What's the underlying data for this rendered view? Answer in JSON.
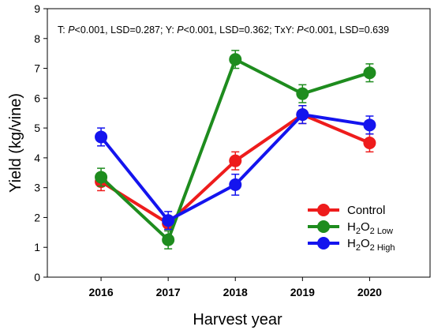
{
  "chart_data": {
    "type": "line",
    "xlabel": "Harvest year",
    "ylabel": "Yield (kg/vine)",
    "ylim": [
      0,
      9
    ],
    "yticks": [
      0,
      1,
      2,
      3,
      4,
      5,
      6,
      7,
      8,
      9
    ],
    "categories": [
      "2016",
      "2017",
      "2018",
      "2019",
      "2020"
    ],
    "xlim": [
      2015.2,
      2020.9
    ],
    "annotation": {
      "parts": [
        {
          "text": "T: ",
          "italic": false
        },
        {
          "text": "P",
          "italic": true
        },
        {
          "text": "<0.001, LSD=0.287; Y: ",
          "italic": false
        },
        {
          "text": "P",
          "italic": true
        },
        {
          "text": "<0.001, LSD=0.362; TxY: ",
          "italic": false
        },
        {
          "text": "P",
          "italic": true
        },
        {
          "text": "<0.001, LSD=0.639",
          "italic": false
        }
      ]
    },
    "series": [
      {
        "name": "Control",
        "label_main": "Control",
        "label_sub": "",
        "color": "#ee1c1c",
        "values": [
          3.2,
          1.8,
          3.9,
          5.45,
          4.5
        ],
        "errors": [
          0.3,
          0.2,
          0.3,
          0.3,
          0.3
        ]
      },
      {
        "name": "H2O2 Low",
        "label_main": "H",
        "label_mid": "2",
        "label_o": "O",
        "label_end": "2 Low",
        "color": "#1e8c1e",
        "values": [
          3.35,
          1.25,
          7.3,
          6.15,
          6.85
        ],
        "errors": [
          0.3,
          0.3,
          0.3,
          0.3,
          0.3
        ]
      },
      {
        "name": "H2O2 High",
        "label_main": "H",
        "label_mid": "2",
        "label_o": "O",
        "label_end": "2 High",
        "color": "#1414ee",
        "values": [
          4.7,
          1.9,
          3.1,
          5.45,
          5.1
        ],
        "errors": [
          0.3,
          0.3,
          0.35,
          0.3,
          0.3
        ]
      }
    ],
    "legend": {
      "position": "bottom-right"
    },
    "grid": false
  }
}
